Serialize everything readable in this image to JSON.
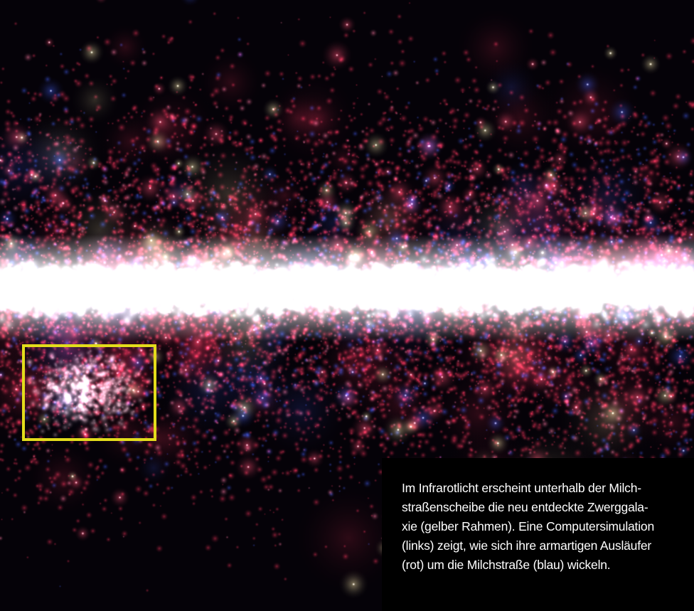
{
  "image": {
    "subject": "Milky Way disc in infrared light with a newly discovered dwarf galaxy below it",
    "colors": {
      "background": "#050208",
      "galactic_band": "#ffffff",
      "star_red": "#e0304f",
      "star_blue": "#3a55d8",
      "star_yellow": "#f3e7a6",
      "highlight_frame": "#e3dc1b",
      "caption_background": "#000000",
      "caption_text": "#ffffff"
    }
  },
  "caption": {
    "lines": [
      "Im Infrarotlicht erscheint unterhalb der Milch-",
      "straßenscheibe die neu entdeckte Zwerggala-",
      "xie (gelber Rahmen). Eine Computersimulation",
      "(links) zeigt, wie sich ihre armartigen Ausläufer",
      "(rot) um die Milchstraße (blau) wickeln."
    ]
  }
}
